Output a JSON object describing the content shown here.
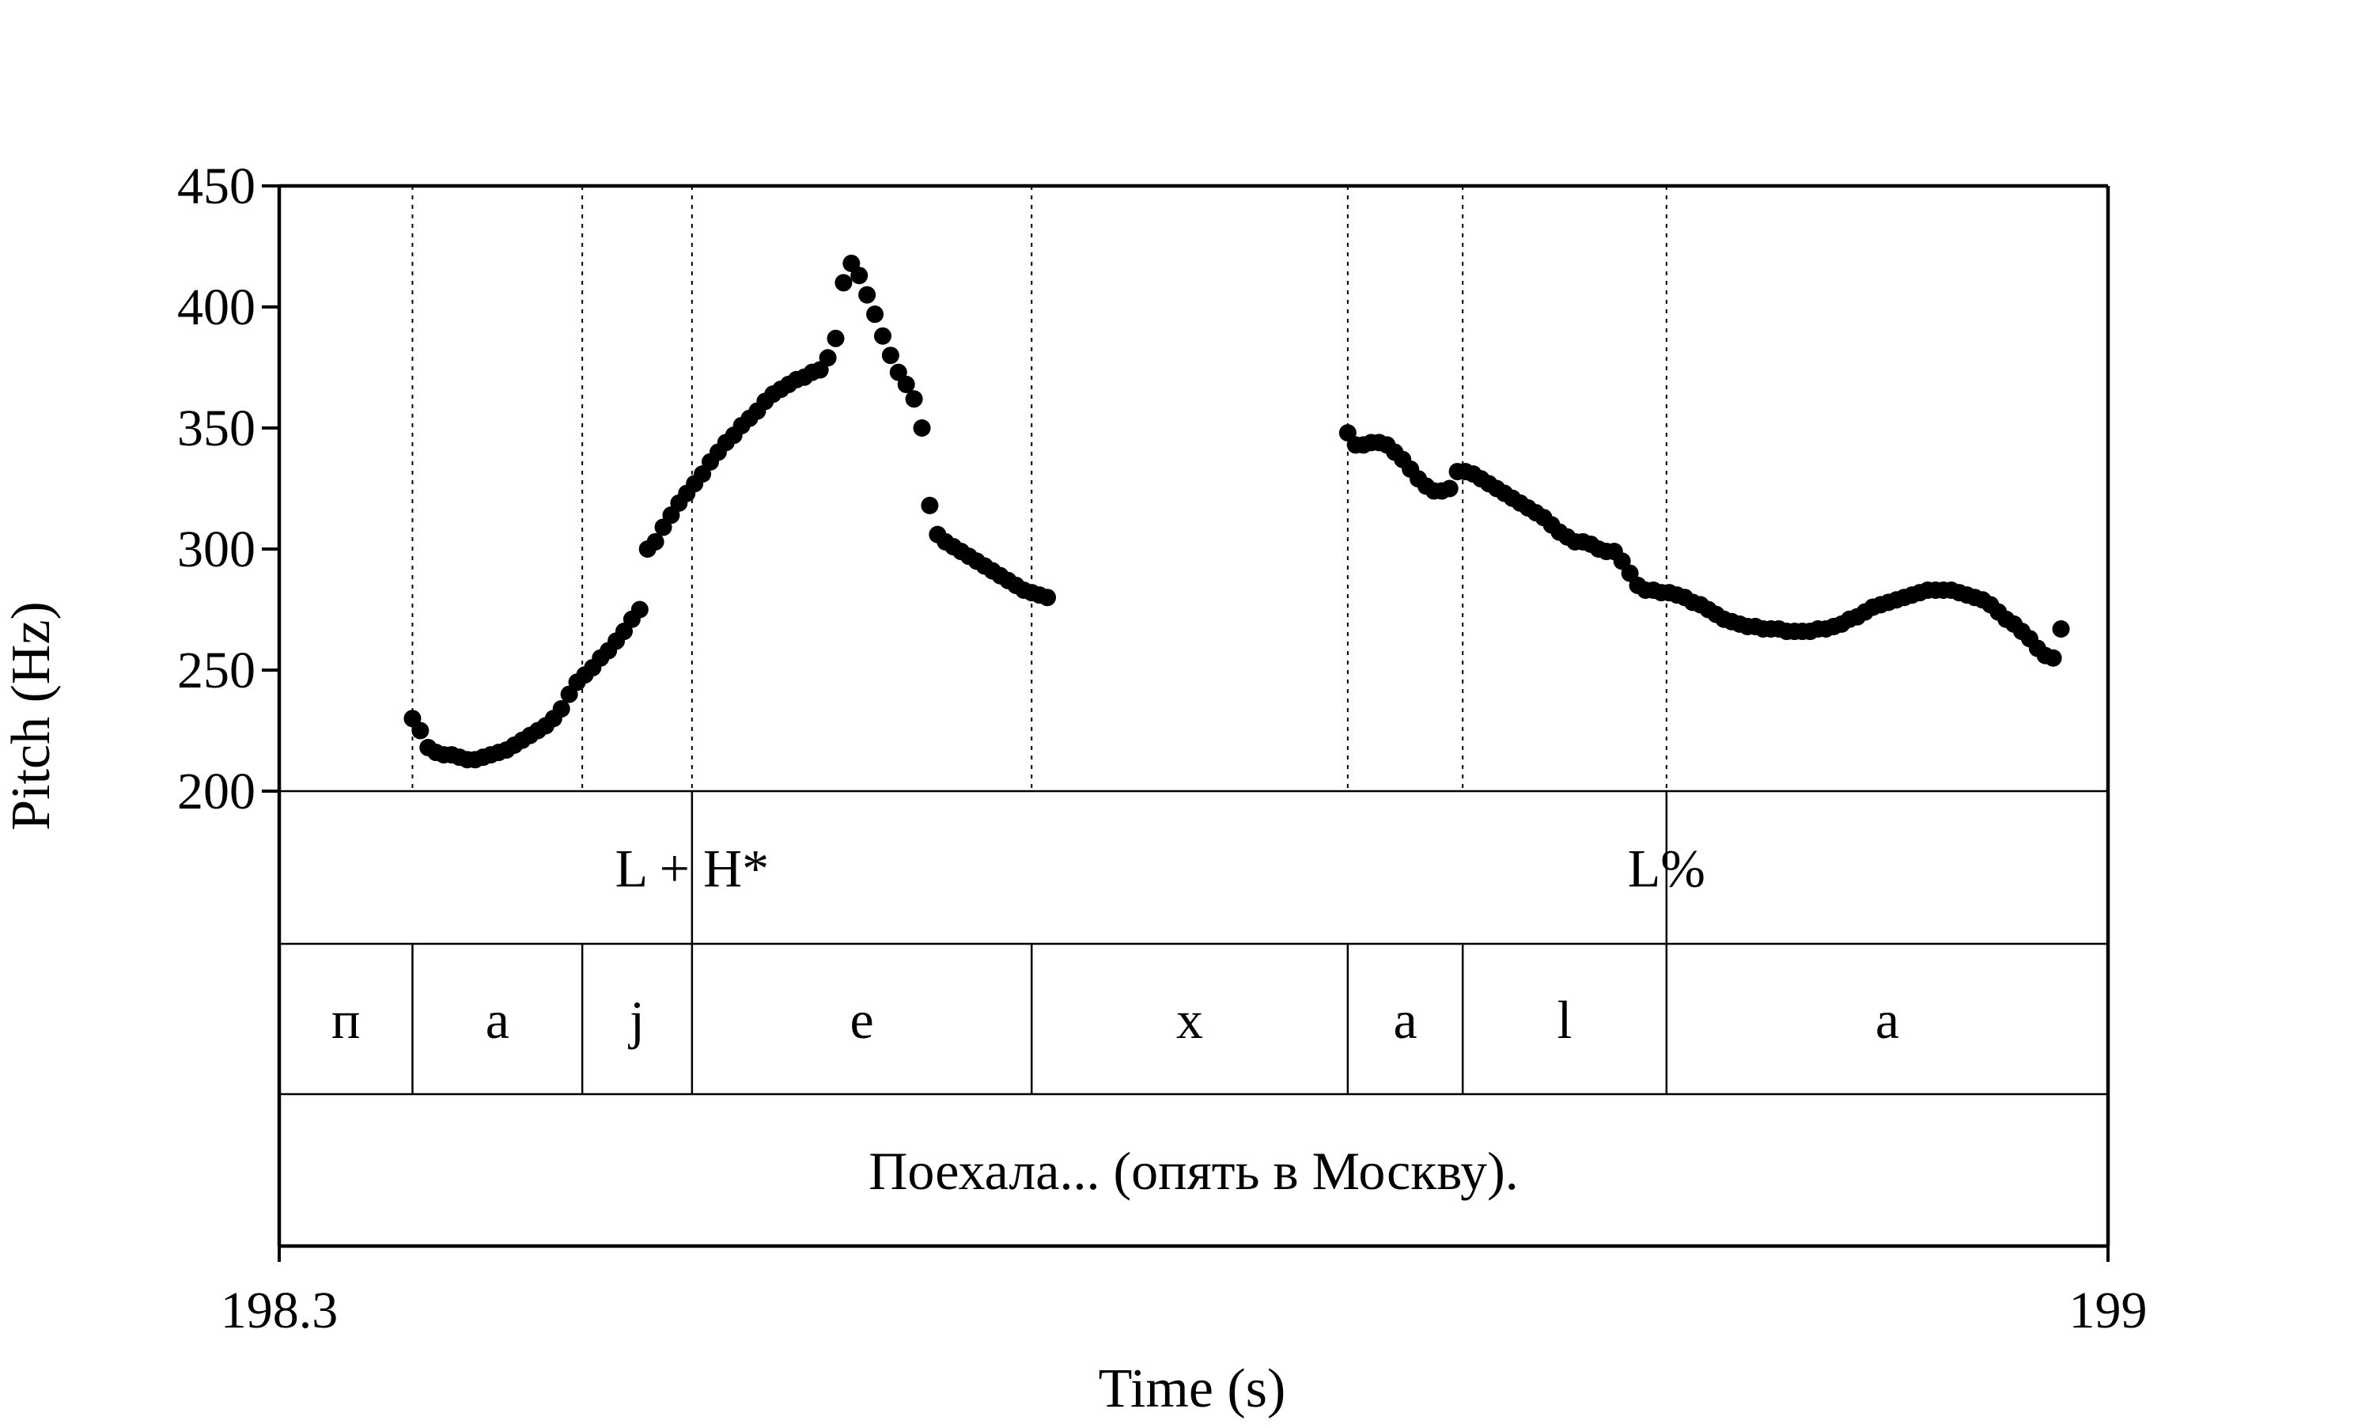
{
  "chart_data": {
    "type": "scatter",
    "xlabel": "Time (s)",
    "ylabel": "Pitch (Hz)",
    "xlim": [
      198.3,
      199
    ],
    "ylim": [
      200,
      450
    ],
    "x_ticks": [
      "198.3",
      "199"
    ],
    "y_ticks": [
      "200",
      "250",
      "300",
      "350",
      "400",
      "450"
    ],
    "grid": false,
    "boundaries": [
      198.351,
      198.416,
      198.458,
      198.588,
      198.709,
      198.753,
      198.831
    ],
    "tiers": [
      {
        "name": "tones",
        "intervals": [
          {
            "label": "L + H*",
            "at": 198.458
          },
          {
            "label": "L%",
            "at": 198.831
          }
        ]
      },
      {
        "name": "segments",
        "intervals": [
          {
            "label": "п",
            "start": 198.3,
            "end": 198.351
          },
          {
            "label": "a",
            "start": 198.351,
            "end": 198.416
          },
          {
            "label": "j",
            "start": 198.416,
            "end": 198.458
          },
          {
            "label": "e",
            "start": 198.458,
            "end": 198.588
          },
          {
            "label": "x",
            "start": 198.588,
            "end": 198.709
          },
          {
            "label": "a",
            "start": 198.709,
            "end": 198.753
          },
          {
            "label": "l",
            "start": 198.753,
            "end": 198.831
          },
          {
            "label": "a",
            "start": 198.831,
            "end": 199.0
          }
        ]
      },
      {
        "name": "text",
        "intervals": [
          {
            "label": "Поехала... (опять в Москву).",
            "start": 198.3,
            "end": 199.0
          }
        ]
      }
    ],
    "series": [
      {
        "x": [
          198.351,
          198.354,
          198.357,
          198.36,
          198.363,
          198.366,
          198.369,
          198.372,
          198.375,
          198.378,
          198.381,
          198.384,
          198.387,
          198.39,
          198.393,
          198.396,
          198.399,
          198.402,
          198.405,
          198.408,
          198.411,
          198.414,
          198.417,
          198.42,
          198.423,
          198.426,
          198.429,
          198.432,
          198.435,
          198.438,
          198.441,
          198.444,
          198.447,
          198.45,
          198.453,
          198.456,
          198.459,
          198.462,
          198.465,
          198.468,
          198.471,
          198.474,
          198.477,
          198.48,
          198.483,
          198.486,
          198.489,
          198.492,
          198.495,
          198.498,
          198.501,
          198.504,
          198.507,
          198.51,
          198.513,
          198.516,
          198.519,
          198.522,
          198.525,
          198.528,
          198.531,
          198.534,
          198.537,
          198.54,
          198.543,
          198.546,
          198.549,
          198.552,
          198.555,
          198.558,
          198.561,
          198.564,
          198.567,
          198.57,
          198.573,
          198.576,
          198.579,
          198.582,
          198.585,
          198.588,
          198.591,
          198.594
        ],
        "y": [
          230,
          225,
          218,
          216,
          215,
          215,
          214,
          213,
          213,
          214,
          215,
          216,
          217,
          219,
          221,
          223,
          225,
          227,
          230,
          234,
          240,
          245,
          248,
          251,
          255,
          258,
          262,
          266,
          271,
          275,
          300,
          303,
          309,
          314,
          319,
          323,
          327,
          331,
          336,
          340,
          344,
          347,
          351,
          354,
          357,
          361,
          364,
          366,
          368,
          370,
          371,
          373,
          374,
          379,
          387,
          410,
          418,
          413,
          405,
          397,
          388,
          380,
          373,
          368,
          362,
          350,
          318,
          306,
          303,
          301,
          299,
          297,
          295,
          293,
          291,
          289,
          287,
          285,
          283,
          282,
          281,
          280
        ],
        "x2": [
          198.709,
          198.712,
          198.715,
          198.718,
          198.721,
          198.724,
          198.727,
          198.73,
          198.733,
          198.736,
          198.739,
          198.742,
          198.745,
          198.748,
          198.751,
          198.754,
          198.757,
          198.76,
          198.763,
          198.766,
          198.769,
          198.772,
          198.775,
          198.778,
          198.781,
          198.784,
          198.787,
          198.79,
          198.793,
          198.796,
          198.799,
          198.802,
          198.805,
          198.808,
          198.811,
          198.814,
          198.817,
          198.82,
          198.823,
          198.826,
          198.829,
          198.832,
          198.835,
          198.838,
          198.841,
          198.844,
          198.847,
          198.85,
          198.853,
          198.856,
          198.859,
          198.862,
          198.865,
          198.868,
          198.871,
          198.874,
          198.877,
          198.88,
          198.883,
          198.886,
          198.889,
          198.892,
          198.895,
          198.898,
          198.901,
          198.904,
          198.907,
          198.91,
          198.913,
          198.916,
          198.919,
          198.922,
          198.925,
          198.928,
          198.931,
          198.934,
          198.937,
          198.94,
          198.943,
          198.946,
          198.949,
          198.952,
          198.955,
          198.958,
          198.961,
          198.964,
          198.967,
          198.97,
          198.973,
          198.976,
          198.979,
          198.982,
          198.985,
          198.988,
          198.991,
          198.994,
          198.997,
          199.0
        ],
        "y2": [
          348,
          343,
          343,
          344,
          344,
          343,
          340,
          337,
          333,
          329,
          326,
          324,
          324,
          325,
          332,
          332,
          331,
          329,
          327,
          325,
          323,
          321,
          319,
          317,
          315,
          313,
          310,
          307,
          305,
          303,
          303,
          302,
          300,
          299,
          299,
          295,
          290,
          285,
          283,
          283,
          282,
          282,
          281,
          280,
          278,
          277,
          275,
          273,
          271,
          270,
          269,
          268,
          268,
          267,
          267,
          267,
          266,
          266,
          266,
          266,
          267,
          267,
          268,
          269,
          271,
          272,
          274,
          276,
          277,
          278,
          279,
          280,
          281,
          282,
          283,
          283,
          283,
          283,
          282,
          281,
          280,
          279,
          277,
          274,
          271,
          269,
          266,
          263,
          259,
          256,
          255,
          267
        ]
      }
    ]
  }
}
